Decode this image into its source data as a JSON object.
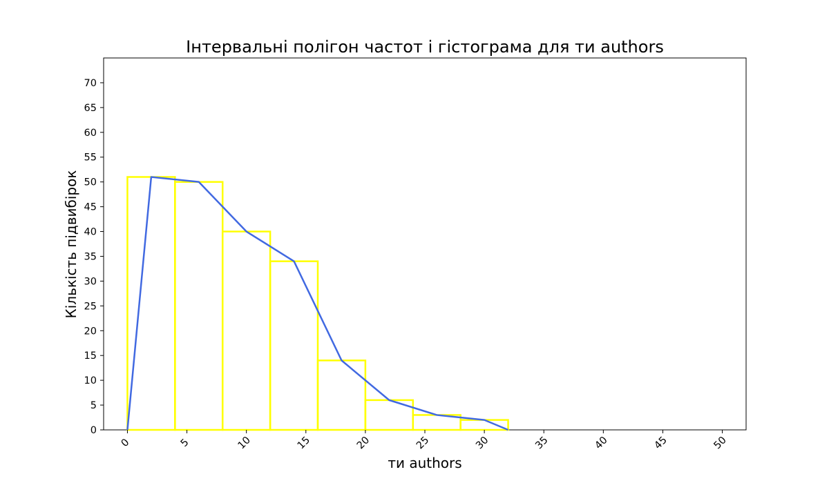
{
  "chart_data": {
    "type": "bar",
    "title": "Інтервальні полігон частот і гістограма для ти authors",
    "xlabel": "ти authors",
    "ylabel": "Кількість підвибірок",
    "xlim": [
      -2,
      52
    ],
    "ylim": [
      0,
      75
    ],
    "xticks": [
      0,
      5,
      10,
      15,
      20,
      25,
      30,
      35,
      40,
      45,
      50
    ],
    "yticks": [
      0,
      5,
      10,
      15,
      20,
      25,
      30,
      35,
      40,
      45,
      50,
      55,
      60,
      65,
      70
    ],
    "grid": false,
    "histogram": {
      "color": "#ffff00",
      "bin_edges": [
        0,
        4,
        8,
        12,
        16,
        20,
        24,
        28,
        32
      ],
      "counts": [
        51,
        50,
        40,
        34,
        14,
        6,
        3,
        2
      ]
    },
    "polygon": {
      "color": "#4169e1",
      "x": [
        0,
        2,
        6,
        10,
        14,
        18,
        22,
        26,
        30,
        32
      ],
      "y": [
        0,
        51,
        50,
        40,
        34,
        14,
        6,
        3,
        2,
        0
      ]
    }
  }
}
